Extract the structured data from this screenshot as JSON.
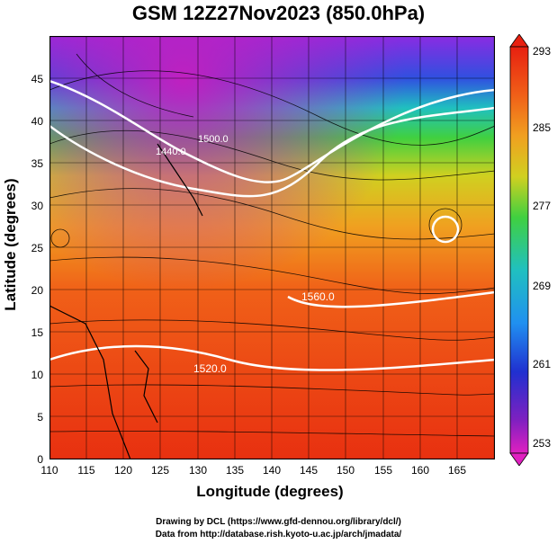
{
  "title": "GSM 12Z27Nov2023 (850.0hPa)",
  "xlabel": "Longitude (degrees)",
  "ylabel": "Latitude  (degrees)",
  "x_ticks": [
    "110",
    "115",
    "120",
    "125",
    "130",
    "135",
    "140",
    "145",
    "150",
    "155",
    "160",
    "165"
  ],
  "y_ticks": [
    "0",
    "5",
    "10",
    "15",
    "20",
    "25",
    "30",
    "35",
    "40",
    "45"
  ],
  "colorbar_ticks": [
    "293",
    "285",
    "277",
    "269",
    "261",
    "253"
  ],
  "contour_labels": [
    "1440.0",
    "1500.0",
    "1560.0",
    "1520.0"
  ],
  "footer": {
    "line1": "Drawing by DCL (https://www.gfd-dennou.org/library/dcl/)",
    "line2": "Data from http://database.rish.kyoto-u.ac.jp/arch/jmadata/"
  },
  "chart_data": {
    "type": "heatmap",
    "title": "GSM 12Z27Nov2023 (850.0hPa)",
    "xlabel": "Longitude (degrees)",
    "ylabel": "Latitude  (degrees)",
    "xlim": [
      110,
      170
    ],
    "ylim": [
      0,
      50
    ],
    "colorbar": {
      "min": 253,
      "max": 293,
      "ticks": [
        293,
        285,
        277,
        269,
        261,
        253
      ]
    },
    "grid": true,
    "contours": [
      {
        "label": "1440.0",
        "lon": 129,
        "lat": 38
      },
      {
        "label": "1500.0",
        "lon": 136,
        "lat": 40
      },
      {
        "label": "1560.0",
        "lon": 152,
        "lat": 20
      },
      {
        "label": "1520.0",
        "lon": 130,
        "lat": 10
      }
    ]
  }
}
